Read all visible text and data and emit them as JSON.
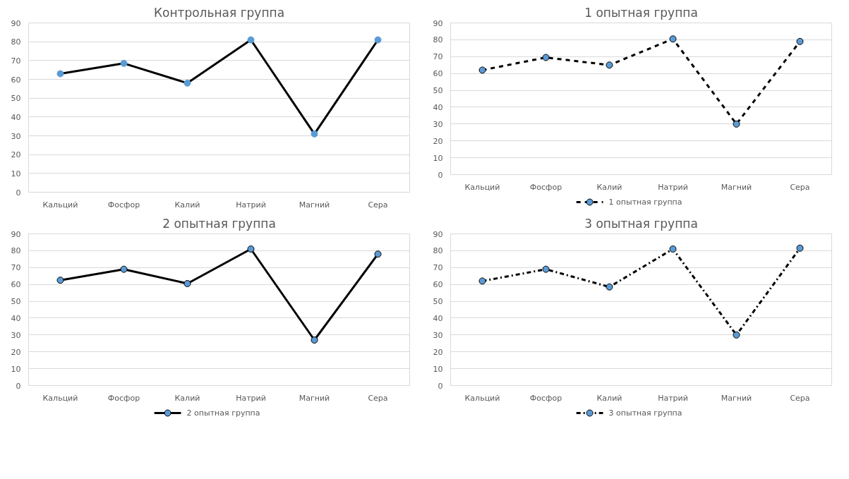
{
  "chart_data": [
    {
      "type": "line",
      "title": "Контрольная группа",
      "categories": [
        "Кальций",
        "Фосфор",
        "Калий",
        "Натрий",
        "Магний",
        "Сера"
      ],
      "ylim": [
        0,
        90
      ],
      "yticks": [
        0,
        10,
        20,
        30,
        40,
        50,
        60,
        70,
        80,
        90
      ],
      "grid": "y",
      "legend": false,
      "marker": "circle",
      "line_style": "solid",
      "series": [
        {
          "color": "#000000",
          "colors": [
            "#5b9bd5",
            "#5b9bd5",
            "#5b9bd5",
            "#5b9bd5",
            "#5b9bd5",
            "#5b9bd5"
          ],
          "values": [
            63,
            68.5,
            58,
            81,
            31,
            81
          ]
        }
      ]
    },
    {
      "type": "line",
      "title": "1 опытная группа",
      "categories": [
        "Кальций",
        "Фосфор",
        "Калий",
        "Натрий",
        "Магний",
        "Сера"
      ],
      "ylim": [
        0,
        90
      ],
      "yticks": [
        0,
        10,
        20,
        30,
        40,
        50,
        60,
        70,
        80,
        90
      ],
      "grid": "y",
      "legend": "bottom",
      "marker": "circle",
      "line_style": "dashed",
      "series": [
        {
          "name": "1 опытная группа",
          "color": "#000000",
          "colors": [
            "#5b9bd5",
            "#5b9bd5",
            "#5b9bd5",
            "#5b9bd5",
            "#5b9bd5",
            "#5b9bd5"
          ],
          "values": [
            62,
            69.5,
            65,
            80.5,
            30,
            79
          ]
        }
      ]
    },
    {
      "type": "line",
      "title": "2 опытная группа",
      "categories": [
        "Кальций",
        "Фосфор",
        "Калий",
        "Натрий",
        "Магний",
        "Сера"
      ],
      "ylim": [
        0,
        90
      ],
      "yticks": [
        0,
        10,
        20,
        30,
        40,
        50,
        60,
        70,
        80,
        90
      ],
      "grid": "y",
      "legend": "bottom",
      "marker": "circle",
      "line_style": "solid",
      "series": [
        {
          "name": "2 опытная группа",
          "color": "#000000",
          "colors": [
            "#5b9bd5",
            "#5b9bd5",
            "#5b9bd5",
            "#5b9bd5",
            "#5b9bd5",
            "#5b9bd5"
          ],
          "values": [
            62.5,
            69,
            60.5,
            81,
            27,
            78
          ]
        }
      ]
    },
    {
      "type": "line",
      "title": "3 опытная группа",
      "categories": [
        "Кальций",
        "Фосфор",
        "Калий",
        "Натрий",
        "Магний",
        "Сера"
      ],
      "ylim": [
        0,
        90
      ],
      "yticks": [
        0,
        10,
        20,
        30,
        40,
        50,
        60,
        70,
        80,
        90
      ],
      "grid": "y",
      "legend": "bottom",
      "marker": "circle",
      "line_style": "dashdot",
      "series": [
        {
          "name": "3 опытная группа",
          "color": "#000000",
          "colors": [
            "#5b9bd5",
            "#5b9bd5",
            "#5b9bd5",
            "#5b9bd5",
            "#5b9bd5",
            "#5b9bd5"
          ],
          "values": [
            62,
            69,
            58.5,
            81,
            30,
            81.5
          ]
        }
      ]
    }
  ]
}
